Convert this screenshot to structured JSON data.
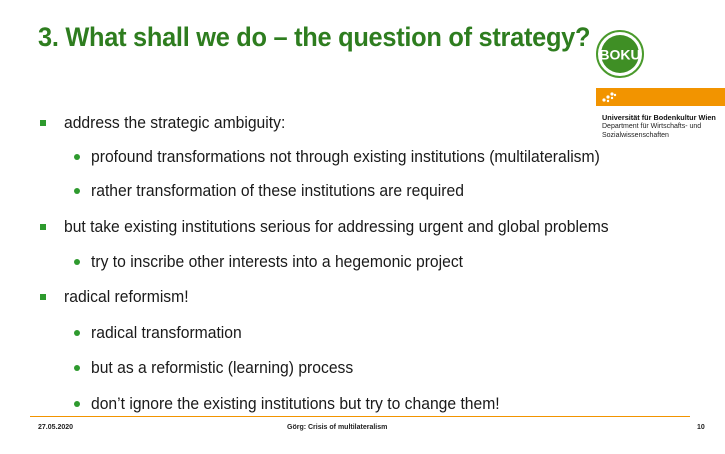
{
  "slide": {
    "title": "3. What shall we do – the question of strategy?",
    "logo": {
      "text": "BOKU",
      "icon": "boku-logo-icon",
      "colors": {
        "ring": "#4a9a2c",
        "fill": "#3f8f25",
        "text": "#ffffff"
      }
    },
    "university": {
      "name": "Universität für Bodenkultur Wien",
      "department_line1": "Department für Wirtschafts- und",
      "department_line2": "Sozialwissenschaften",
      "bar_color": "#f29400"
    },
    "bullets": [
      {
        "level": 1,
        "text": "address the strategic ambiguity:"
      },
      {
        "level": 2,
        "text": "profound transformations not through existing institutions (multilateralism)"
      },
      {
        "level": 2,
        "text": "rather transformation of these institutions are required"
      },
      {
        "level": 1,
        "text": "but take existing institutions serious for addressing urgent and global problems"
      },
      {
        "level": 2,
        "text": "try to inscribe other interests into a hegemonic project"
      },
      {
        "level": 1,
        "text": "radical reformism!"
      },
      {
        "level": 2,
        "text": "radical transformation"
      },
      {
        "level": 2,
        "text": "but as a reformistic (learning) process"
      },
      {
        "level": 2,
        "text": "don’t ignore the existing institutions but try to change them!"
      }
    ],
    "footer": {
      "date": "27.05.2020",
      "center": "Görg: Crisis of multilateralism",
      "page": "10"
    },
    "colors": {
      "title": "#2e7d1f",
      "bullet": "#2e9a2e",
      "accent": "#f29400"
    }
  }
}
